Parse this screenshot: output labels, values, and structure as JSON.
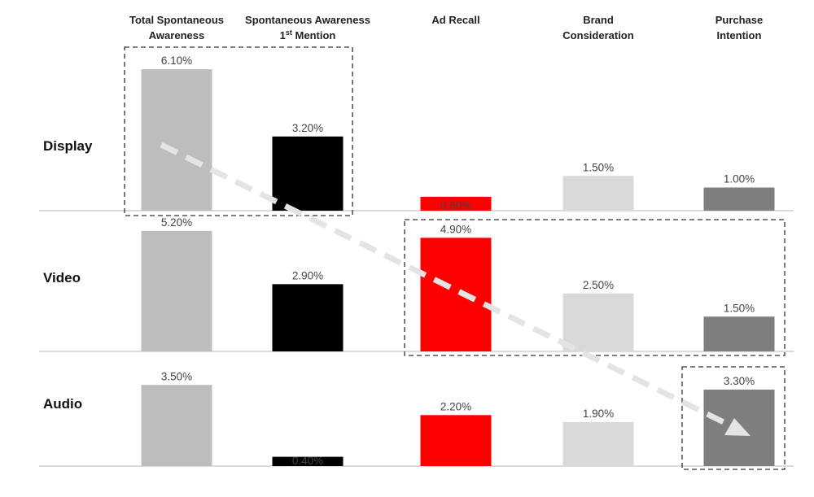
{
  "chart_data": {
    "type": "bar",
    "layout": "small-multiples-grid",
    "columns": [
      {
        "label": "Total Spontaneous\nAwareness",
        "color": "#bdbdbd"
      },
      {
        "label": "Spontaneous Awareness\n1st Mention",
        "color": "#000000"
      },
      {
        "label": "Ad Recall",
        "color": "#ff0000"
      },
      {
        "label": "Brand\nConsideration",
        "color": "#d9d9d9"
      },
      {
        "label": "Purchase\nIntention",
        "color": "#7f7f7f"
      }
    ],
    "rows": [
      {
        "name": "Display",
        "values": [
          6.1,
          3.2,
          0.6,
          1.5,
          1.0
        ],
        "labels": [
          "6.10%",
          "3.20%",
          "0.60%",
          "1.50%",
          "1.00%"
        ]
      },
      {
        "name": "Video",
        "values": [
          5.2,
          2.9,
          4.9,
          2.5,
          1.5
        ],
        "labels": [
          "5.20%",
          "2.90%",
          "4.90%",
          "2.50%",
          "1.50%"
        ]
      },
      {
        "name": "Audio",
        "values": [
          3.5,
          0.4,
          2.2,
          1.9,
          3.3
        ],
        "labels": [
          "3.50%",
          "0.40%",
          "2.20%",
          "1.90%",
          "3.30%"
        ]
      }
    ],
    "unit": "%",
    "highlight_boxes": [
      {
        "row": "Display",
        "columns": [
          "Total Spontaneous Awareness",
          "Spontaneous Awareness 1st Mention"
        ]
      },
      {
        "row": "Video",
        "columns": [
          "Ad Recall",
          "Brand Consideration",
          "Purchase Intention"
        ]
      },
      {
        "row": "Audio",
        "columns": [
          "Purchase Intention"
        ]
      }
    ],
    "arrow": "dashed diagonal arrow from Display/Total Spontaneous Awareness to Audio/Purchase Intention"
  }
}
